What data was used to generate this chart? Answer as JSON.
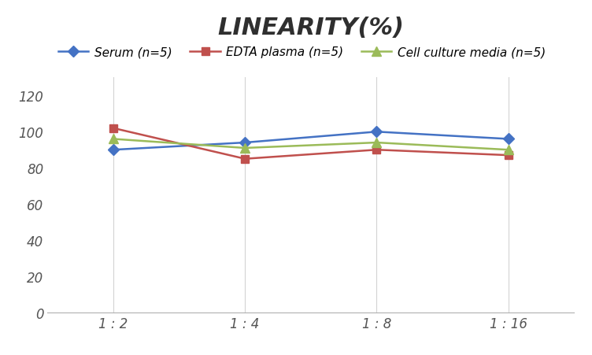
{
  "title": "LINEARITY(%)",
  "x_labels": [
    "1 : 2",
    "1 : 4",
    "1 : 8",
    "1 : 16"
  ],
  "x_positions": [
    0,
    1,
    2,
    3
  ],
  "series": [
    {
      "label": "Serum (n=5)",
      "values": [
        90,
        94,
        100,
        96
      ],
      "color": "#4472C4",
      "marker": "D",
      "marker_size": 7
    },
    {
      "label": "EDTA plasma (n=5)",
      "values": [
        102,
        85,
        90,
        87
      ],
      "color": "#C0504D",
      "marker": "s",
      "marker_size": 7
    },
    {
      "label": "Cell culture media (n=5)",
      "values": [
        96,
        91,
        94,
        90
      ],
      "color": "#9BBB59",
      "marker": "^",
      "marker_size": 8
    }
  ],
  "ylim": [
    0,
    130
  ],
  "yticks": [
    0,
    20,
    40,
    60,
    80,
    100,
    120
  ],
  "grid_color": "#D3D3D3",
  "background_color": "#FFFFFF",
  "title_fontsize": 22,
  "legend_fontsize": 11,
  "tick_fontsize": 12
}
